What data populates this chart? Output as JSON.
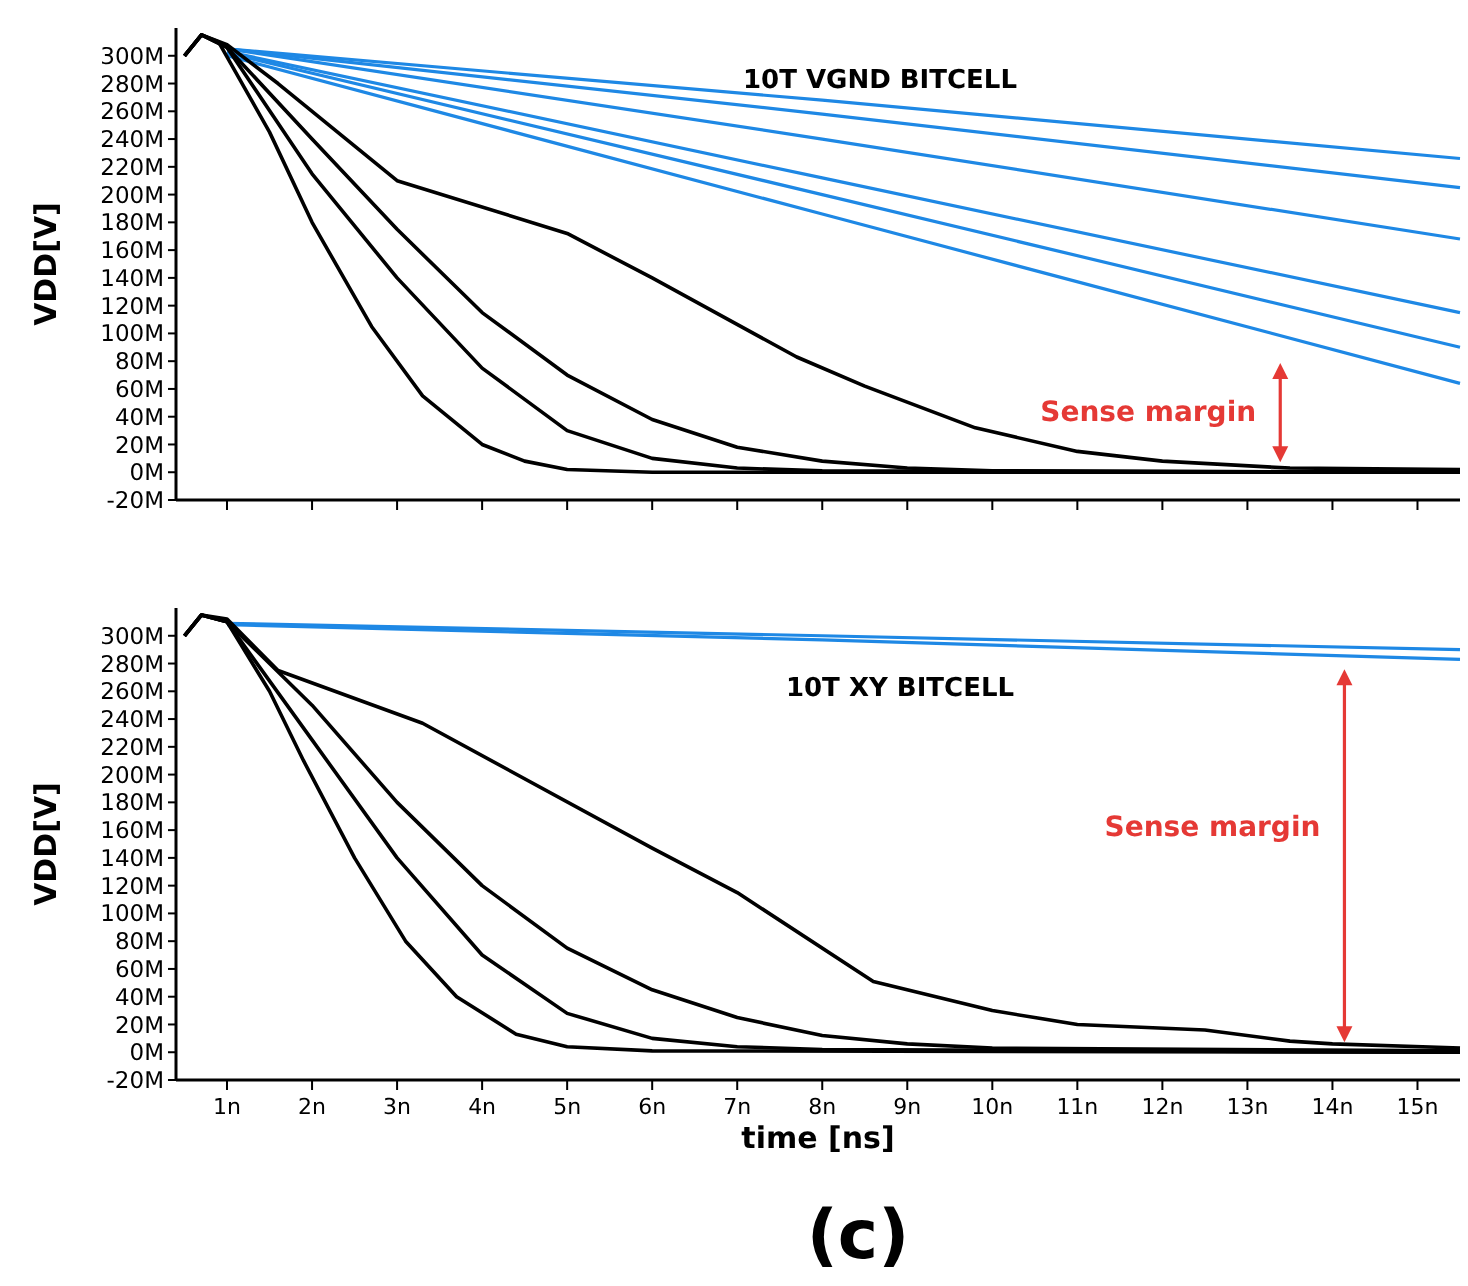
{
  "chart_data": [
    {
      "type": "line",
      "title": "10T VGND BITCELL",
      "ylabel": "VDD[V]",
      "xlim": [
        0.4,
        15.5
      ],
      "ylim": [
        -20,
        320
      ],
      "xticks": [
        {
          "value": 1,
          "label": null
        },
        {
          "value": 2,
          "label": null
        },
        {
          "value": 3,
          "label": null
        },
        {
          "value": 4,
          "label": null
        },
        {
          "value": 5,
          "label": null
        },
        {
          "value": 6,
          "label": null
        },
        {
          "value": 7,
          "label": null
        },
        {
          "value": 8,
          "label": null
        },
        {
          "value": 9,
          "label": null
        },
        {
          "value": 10,
          "label": null
        },
        {
          "value": 11,
          "label": null
        },
        {
          "value": 12,
          "label": null
        },
        {
          "value": 13,
          "label": null
        },
        {
          "value": 14,
          "label": null
        },
        {
          "value": 15,
          "label": null
        }
      ],
      "yticks": [
        {
          "value": -20,
          "label": "-20M"
        },
        {
          "value": 0,
          "label": "0M"
        },
        {
          "value": 20,
          "label": "20M"
        },
        {
          "value": 40,
          "label": "40M"
        },
        {
          "value": 60,
          "label": "60M"
        },
        {
          "value": 80,
          "label": "80M"
        },
        {
          "value": 100,
          "label": "100M"
        },
        {
          "value": 120,
          "label": "120M"
        },
        {
          "value": 140,
          "label": "140M"
        },
        {
          "value": 160,
          "label": "160M"
        },
        {
          "value": 180,
          "label": "180M"
        },
        {
          "value": 200,
          "label": "200M"
        },
        {
          "value": 220,
          "label": "220M"
        },
        {
          "value": 240,
          "label": "240M"
        },
        {
          "value": 260,
          "label": "260M"
        },
        {
          "value": 280,
          "label": "280M"
        },
        {
          "value": 300,
          "label": "300M"
        }
      ],
      "tick_labels": "y",
      "grid": false,
      "marker": "none",
      "line_style": "solid",
      "annotations": [
        "Sense margin"
      ],
      "series": [
        {
          "color": "#1e88e5",
          "x": [
            1,
            8,
            15.5
          ],
          "values": [
            305,
            268,
            226
          ]
        },
        {
          "color": "#1e88e5",
          "x": [
            1,
            8,
            15.5
          ],
          "values": [
            305,
            258,
            205
          ]
        },
        {
          "color": "#1e88e5",
          "x": [
            1,
            8,
            15.5
          ],
          "values": [
            305,
            240,
            168
          ]
        },
        {
          "color": "#1e88e5",
          "x": [
            1,
            8,
            15.5
          ],
          "values": [
            303,
            212,
            115
          ]
        },
        {
          "color": "#1e88e5",
          "x": [
            1,
            8,
            15.5
          ],
          "values": [
            302,
            200,
            90
          ]
        },
        {
          "color": "#1e88e5",
          "x": [
            1,
            8,
            15.5
          ],
          "values": [
            300,
            186,
            64
          ]
        },
        {
          "color": "#000000",
          "x": [
            0.5,
            0.7,
            0.9,
            1.5,
            2,
            2.7,
            3.3,
            4,
            4.5,
            5,
            6,
            15.5
          ],
          "values": [
            300,
            315,
            310,
            245,
            180,
            105,
            55,
            20,
            8,
            2,
            0,
            0
          ]
        },
        {
          "color": "#000000",
          "x": [
            0.5,
            0.7,
            1,
            2,
            3,
            4,
            5,
            6,
            7,
            8,
            15.5
          ],
          "values": [
            300,
            315,
            306,
            215,
            140,
            75,
            30,
            10,
            3,
            1,
            0
          ]
        },
        {
          "color": "#000000",
          "x": [
            0.5,
            0.7,
            1,
            2,
            3,
            4,
            5,
            6,
            7,
            8,
            9,
            10,
            15.5
          ],
          "values": [
            300,
            315,
            306,
            240,
            175,
            115,
            70,
            38,
            18,
            8,
            3,
            1,
            0
          ]
        },
        {
          "color": "#000000",
          "x": [
            0.5,
            0.7,
            1,
            1.6,
            3,
            5,
            6,
            7.7,
            8.5,
            9.8,
            11,
            12,
            13.5,
            15.5
          ],
          "values": [
            300,
            315,
            308,
            280,
            210,
            172,
            140,
            83,
            62,
            32,
            15,
            8,
            3,
            2
          ]
        }
      ]
    },
    {
      "type": "line",
      "title": "10T XY BITCELL",
      "ylabel": "VDD[V]",
      "xlabel": "time [ns]",
      "xlim": [
        0.4,
        15.5
      ],
      "ylim": [
        -20,
        320
      ],
      "xticks": [
        {
          "value": 1,
          "label": "1n"
        },
        {
          "value": 2,
          "label": "2n"
        },
        {
          "value": 3,
          "label": "3n"
        },
        {
          "value": 4,
          "label": "4n"
        },
        {
          "value": 5,
          "label": "5n"
        },
        {
          "value": 6,
          "label": "6n"
        },
        {
          "value": 7,
          "label": "7n"
        },
        {
          "value": 8,
          "label": "8n"
        },
        {
          "value": 9,
          "label": "9n"
        },
        {
          "value": 10,
          "label": "10n"
        },
        {
          "value": 11,
          "label": "11n"
        },
        {
          "value": 12,
          "label": "12n"
        },
        {
          "value": 13,
          "label": "13n"
        },
        {
          "value": 14,
          "label": "14n"
        },
        {
          "value": 15,
          "label": "15n"
        }
      ],
      "yticks": [
        {
          "value": -20,
          "label": "-20M"
        },
        {
          "value": 0,
          "label": "0M"
        },
        {
          "value": 20,
          "label": "20M"
        },
        {
          "value": 40,
          "label": "40M"
        },
        {
          "value": 60,
          "label": "60M"
        },
        {
          "value": 80,
          "label": "80M"
        },
        {
          "value": 100,
          "label": "100M"
        },
        {
          "value": 120,
          "label": "120M"
        },
        {
          "value": 140,
          "label": "140M"
        },
        {
          "value": 160,
          "label": "160M"
        },
        {
          "value": 180,
          "label": "180M"
        },
        {
          "value": 200,
          "label": "200M"
        },
        {
          "value": 220,
          "label": "220M"
        },
        {
          "value": 240,
          "label": "240M"
        },
        {
          "value": 260,
          "label": "260M"
        },
        {
          "value": 280,
          "label": "280M"
        },
        {
          "value": 300,
          "label": "300M"
        }
      ],
      "grid": false,
      "marker": "none",
      "line_style": "solid",
      "annotations": [
        "Sense margin",
        "(c)"
      ],
      "series": [
        {
          "color": "#1e88e5",
          "x": [
            1,
            8,
            15.5
          ],
          "values": [
            309,
            300,
            290
          ]
        },
        {
          "color": "#1e88e5",
          "x": [
            1,
            8,
            15.5
          ],
          "values": [
            308,
            297,
            283
          ]
        },
        {
          "color": "#000000",
          "x": [
            0.5,
            0.7,
            1,
            1.5,
            1.9,
            2.5,
            3.1,
            3.7,
            4.4,
            5,
            6,
            15.5
          ],
          "values": [
            300,
            315,
            310,
            260,
            210,
            140,
            80,
            40,
            13,
            4,
            1,
            0
          ]
        },
        {
          "color": "#000000",
          "x": [
            0.5,
            0.7,
            1,
            2,
            3,
            4,
            5,
            6,
            7,
            8,
            15.5
          ],
          "values": [
            300,
            315,
            310,
            225,
            140,
            70,
            28,
            10,
            4,
            2,
            0
          ]
        },
        {
          "color": "#000000",
          "x": [
            0.5,
            0.7,
            1,
            2,
            3,
            4,
            5,
            6,
            7,
            8,
            9,
            10,
            15.5
          ],
          "values": [
            300,
            315,
            310,
            250,
            180,
            120,
            75,
            45,
            25,
            12,
            6,
            3,
            1
          ]
        },
        {
          "color": "#000000",
          "x": [
            0.5,
            0.7,
            1,
            1.6,
            3.3,
            6,
            7,
            8.6,
            10,
            11,
            12.5,
            13.5,
            14,
            15.5
          ],
          "values": [
            300,
            315,
            312,
            275,
            237,
            147,
            115,
            51,
            30,
            20,
            16,
            8,
            6,
            3
          ]
        }
      ]
    }
  ]
}
